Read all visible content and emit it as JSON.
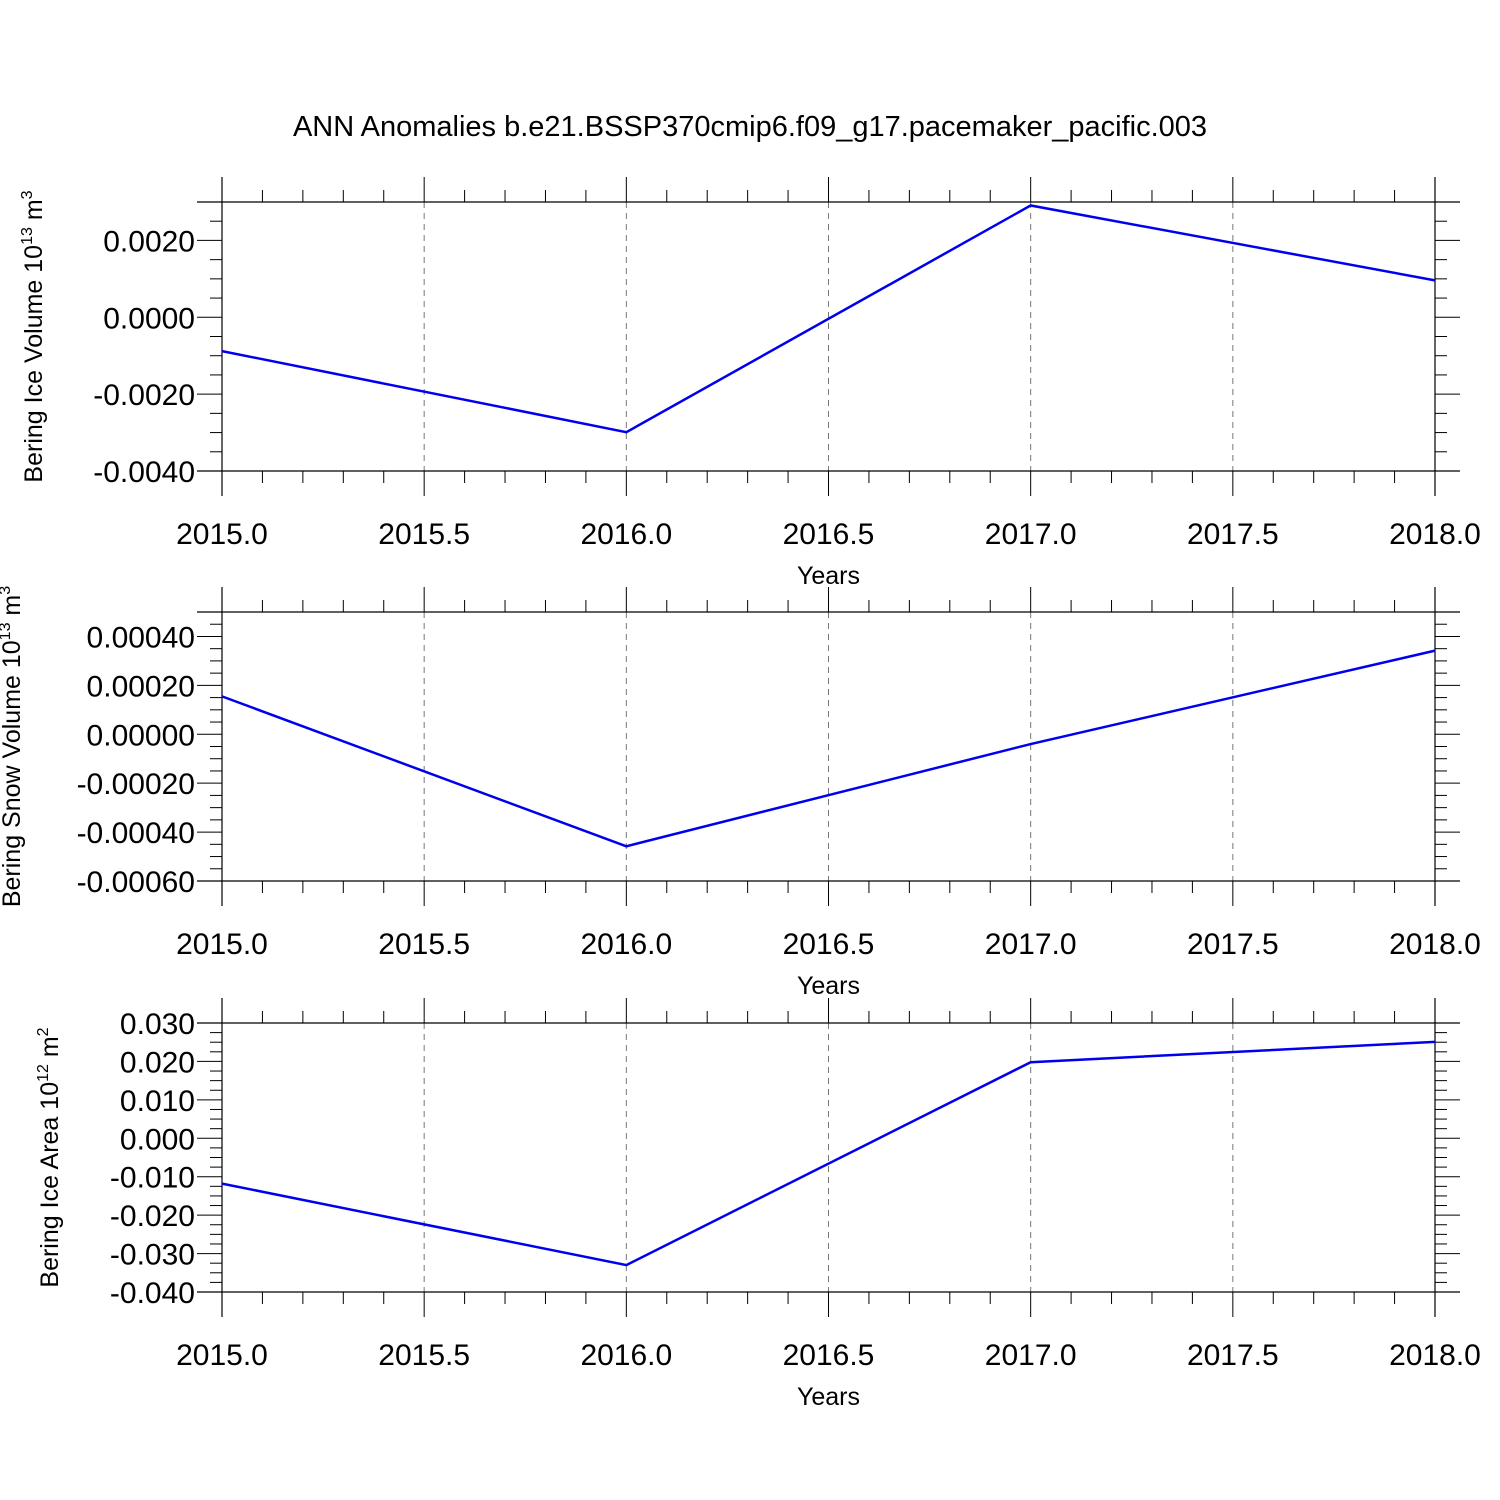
{
  "title": "ANN Anomalies b.e21.BSSP370cmip6.f09_g17.pacemaker_pacific.003",
  "colors": {
    "line": "#0000ee",
    "axis": "#000000",
    "grid": "#777777"
  },
  "chart_data": [
    {
      "type": "line",
      "xlabel": "Years",
      "ylabel": "Bering Ice Volume 10",
      "ylabel_exp": "13",
      "ylabel_unit": " m",
      "ylabel_unit_exp": "3",
      "xlim": [
        2015.0,
        2018.0
      ],
      "ylim": [
        -0.004,
        0.003
      ],
      "xticks": [
        "2015.0",
        "2015.5",
        "2016.0",
        "2016.5",
        "2017.0",
        "2017.5",
        "2018.0"
      ],
      "yticks": [
        "0.0020",
        "0.0000",
        "-0.0020",
        "-0.0040"
      ],
      "grid": "vertical dashed at major x ticks",
      "series": [
        {
          "x": [
            2015,
            2016,
            2017,
            2018
          ],
          "y": [
            -0.00088,
            -0.00299,
            0.00291,
            0.00096
          ]
        }
      ]
    },
    {
      "type": "line",
      "xlabel": "Years",
      "ylabel": "Bering Snow Volume 10",
      "ylabel_exp": "13",
      "ylabel_unit": " m",
      "ylabel_unit_exp": "3",
      "xlim": [
        2015.0,
        2018.0
      ],
      "ylim": [
        -0.0006,
        0.0005
      ],
      "xticks": [
        "2015.0",
        "2015.5",
        "2016.0",
        "2016.5",
        "2017.0",
        "2017.5",
        "2018.0"
      ],
      "yticks": [
        "0.00040",
        "0.00020",
        "0.00000",
        "-0.00020",
        "-0.00040",
        "-0.00060"
      ],
      "grid": "vertical dashed at major x ticks",
      "series": [
        {
          "x": [
            2015,
            2016,
            2017,
            2018
          ],
          "y": [
            0.000155,
            -0.000458,
            -4e-05,
            0.000342
          ]
        }
      ]
    },
    {
      "type": "line",
      "xlabel": "Years",
      "ylabel": "Bering Ice Area 10",
      "ylabel_exp": "12",
      "ylabel_unit": " m",
      "ylabel_unit_exp": "2",
      "xlim": [
        2015.0,
        2018.0
      ],
      "ylim": [
        -0.04,
        0.03
      ],
      "xticks": [
        "2015.0",
        "2015.5",
        "2016.0",
        "2016.5",
        "2017.0",
        "2017.5",
        "2018.0"
      ],
      "yticks": [
        "0.030",
        "0.020",
        "0.010",
        "0.000",
        "-0.010",
        "-0.020",
        "-0.030",
        "-0.040"
      ],
      "grid": "vertical dashed at major x ticks",
      "series": [
        {
          "x": [
            2015,
            2016,
            2017,
            2018
          ],
          "y": [
            -0.0118,
            -0.033,
            0.0198,
            0.0251
          ]
        }
      ]
    }
  ]
}
